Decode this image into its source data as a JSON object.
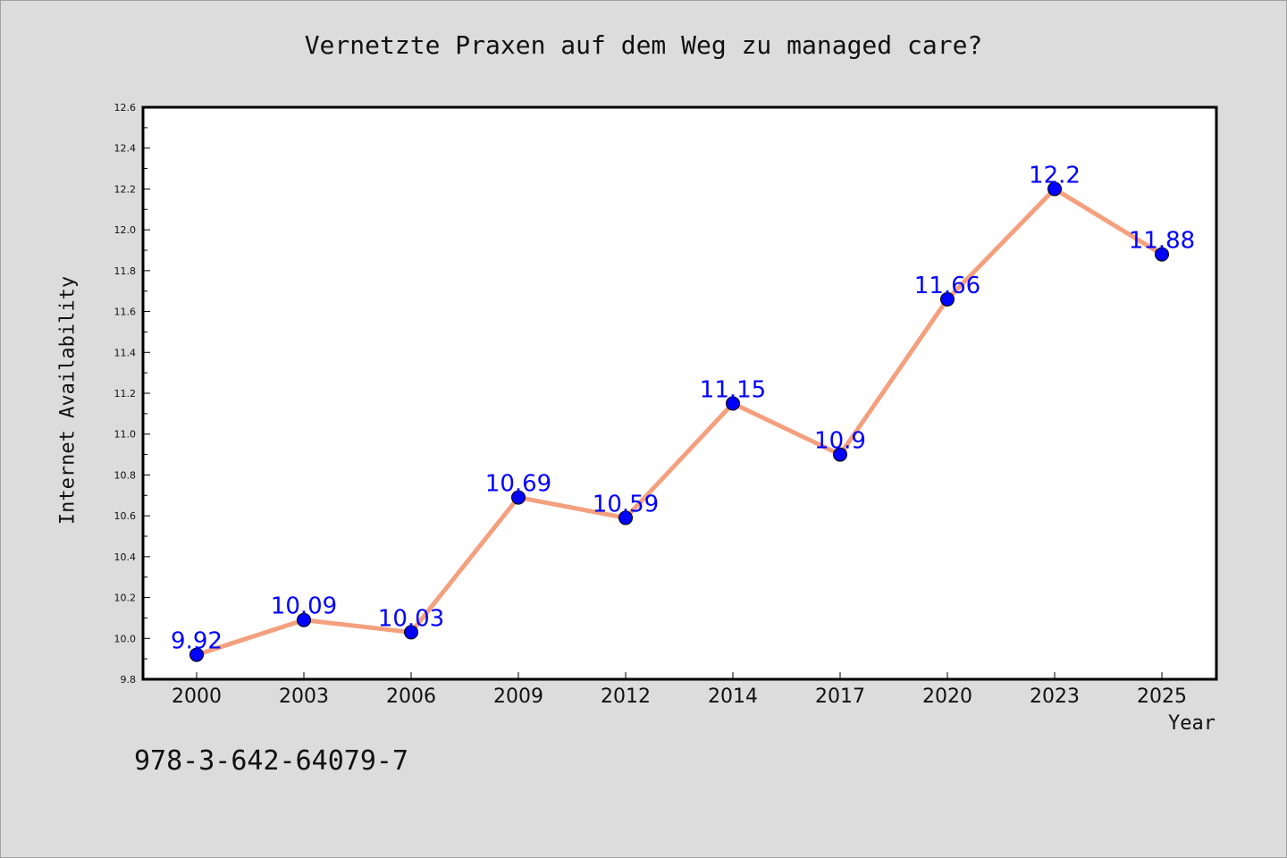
{
  "chart_data": {
    "type": "line",
    "title": "Vernetzte Praxen auf dem Weg zu managed care?",
    "xlabel": "Year",
    "ylabel": "Internet Availability",
    "categories": [
      "2000",
      "2003",
      "2006",
      "2009",
      "2012",
      "2014",
      "2017",
      "2020",
      "2023",
      "2025"
    ],
    "series": [
      {
        "values": [
          9.92,
          10.09,
          10.03,
          10.69,
          10.59,
          11.15,
          10.9,
          11.66,
          12.2,
          11.88
        ],
        "labels": [
          "9.92",
          "10.09",
          "10.03",
          "10.69",
          "10.59",
          "11.15",
          "10.9",
          "11.66",
          "12.2",
          "11.88"
        ]
      }
    ],
    "ylim": [
      9.8,
      12.6
    ],
    "yticks": [
      "9.8",
      "10.0",
      "10.2",
      "10.4",
      "10.6",
      "10.8",
      "11.0",
      "11.2",
      "11.4",
      "11.6",
      "11.8",
      "12.0",
      "12.2",
      "12.4",
      "12.6"
    ],
    "grid": false,
    "legend": "none",
    "colors": {
      "line": "#f4a07e",
      "marker": "#0000ff",
      "label": "#0000ff",
      "background": "#dcdcdc",
      "plot_area": "#ffffff"
    }
  },
  "footer": {
    "isbn": "978-3-642-64079-7"
  }
}
